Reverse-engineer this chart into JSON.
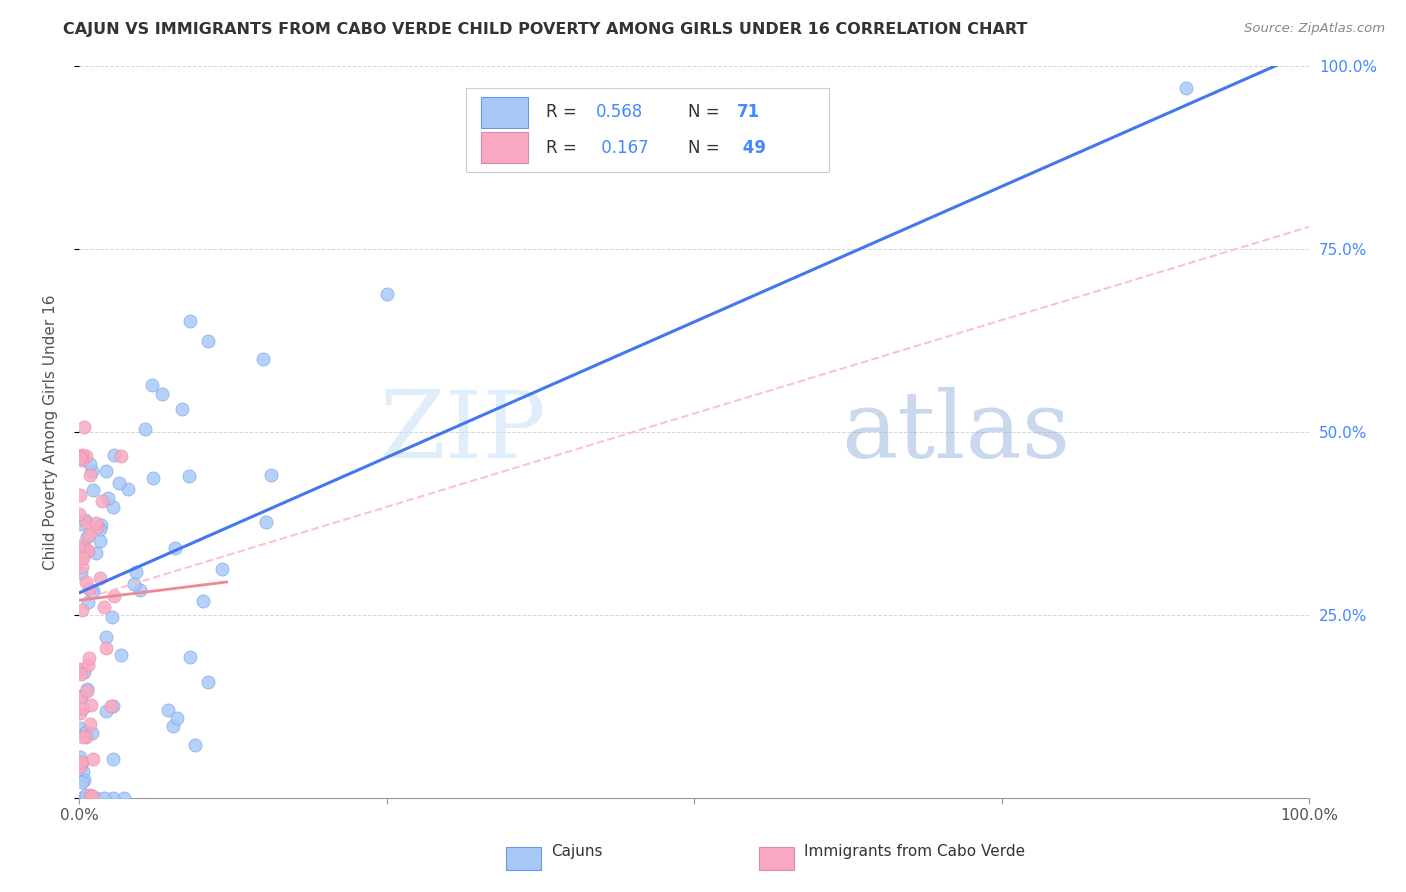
{
  "title": "CAJUN VS IMMIGRANTS FROM CABO VERDE CHILD POVERTY AMONG GIRLS UNDER 16 CORRELATION CHART",
  "source": "Source: ZipAtlas.com",
  "ylabel": "Child Poverty Among Girls Under 16",
  "cajun_R": "0.568",
  "cajun_N": "71",
  "cabo_R": "0.167",
  "cabo_N": "49",
  "cajun_color": "#a8c8f8",
  "cabo_color": "#f8a8c0",
  "cajun_edge_color": "#6699dd",
  "cabo_edge_color": "#dd88aa",
  "cajun_line_color": "#4477ee",
  "cabo_line_color": "#ee8899",
  "watermark_color": "#ddeeff",
  "background_color": "#ffffff",
  "grid_color": "#cccccc",
  "right_tick_color": "#4488ff",
  "title_color": "#333333",
  "label_color": "#555555",
  "legend_text_color": "#333333",
  "legend_N_color": "#4488ff",
  "watermark": "ZIPatlas",
  "watermark_zip": "ZIP",
  "watermark_atlas": "atlas"
}
